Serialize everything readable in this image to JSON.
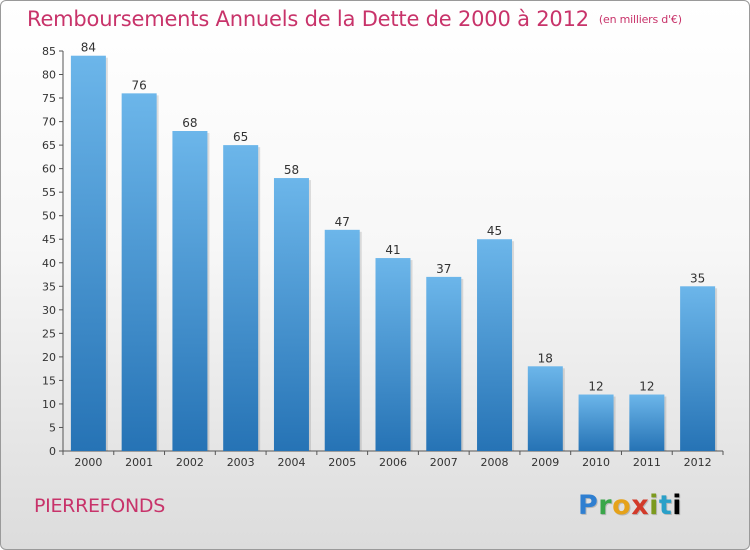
{
  "header": {
    "title": "Remboursements Annuels de la Dette de 2000 à 2012",
    "unit": "(en milliers d'€)"
  },
  "footer": {
    "city": "PIERREFONDS",
    "logo": "Proxiti"
  },
  "colors": {
    "title": "#c8336a",
    "bar_top": "#6cb6ea",
    "bar_bottom": "#2673b5"
  },
  "chart_data": {
    "type": "bar",
    "title": "Remboursements Annuels de la Dette de 2000 à 2012",
    "subtitle": "(en milliers d'€)",
    "xlabel": "",
    "ylabel": "",
    "categories": [
      "2000",
      "2001",
      "2002",
      "2003",
      "2004",
      "2005",
      "2006",
      "2007",
      "2008",
      "2009",
      "2010",
      "2011",
      "2012"
    ],
    "values": [
      84,
      76,
      68,
      65,
      58,
      47,
      41,
      37,
      45,
      18,
      12,
      12,
      35
    ],
    "ylim": [
      0,
      85
    ],
    "yticks": [
      0,
      5,
      10,
      15,
      20,
      25,
      30,
      35,
      40,
      45,
      50,
      55,
      60,
      65,
      70,
      75,
      80,
      85
    ],
    "grid": false,
    "data_labels": true
  }
}
